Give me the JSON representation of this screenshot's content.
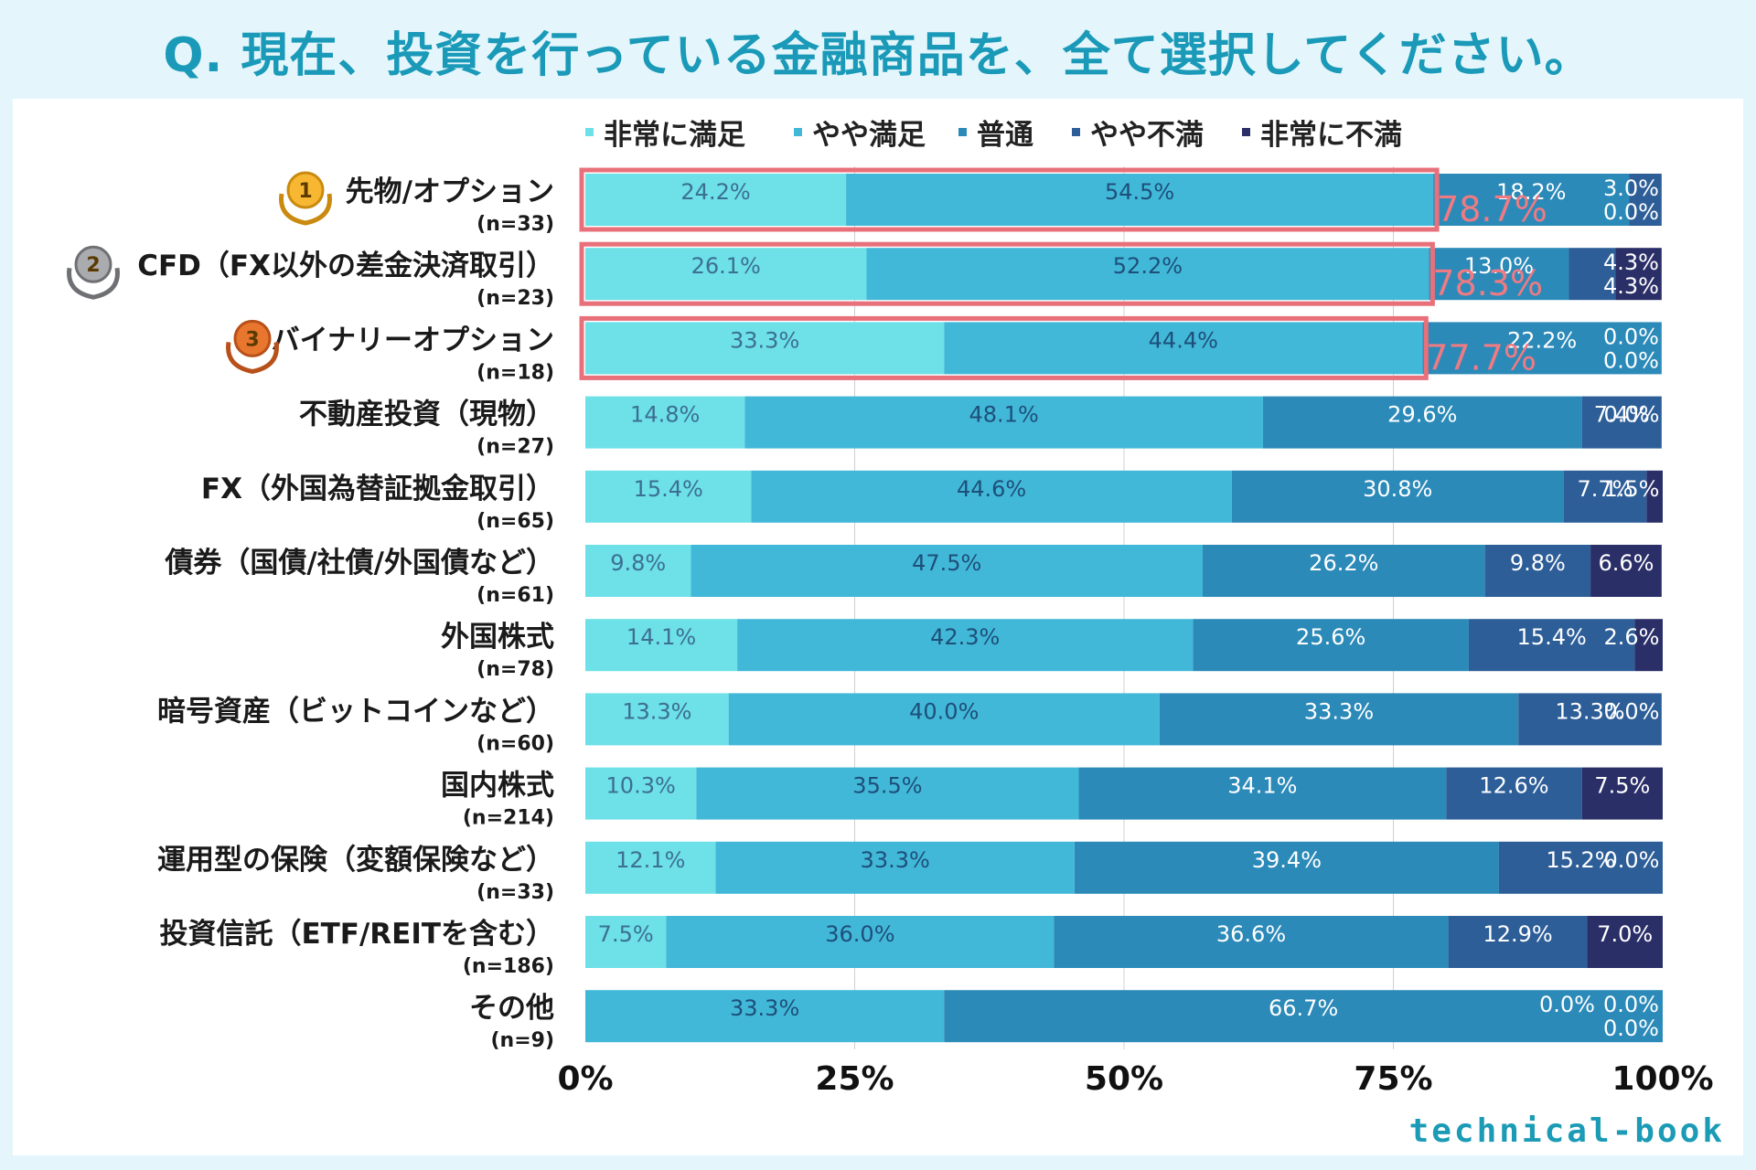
{
  "page": {
    "title": "Q. 現在、投資を行っている金融商品を、全て選択してください。",
    "logo": "technical-book"
  },
  "chart_data": {
    "type": "bar",
    "orientation": "horizontal",
    "stacked": true,
    "title": "Q. 現在、投資を行っている金融商品を、全て選択してください。",
    "xlim": [
      0,
      100
    ],
    "xticks": [
      "0%",
      "25%",
      "50%",
      "75%",
      "100%"
    ],
    "legend_position": "top",
    "series": [
      {
        "name": "非常に満足",
        "color": "#6de0e8"
      },
      {
        "name": "やや満足",
        "color": "#42b8d8"
      },
      {
        "name": "普通",
        "color": "#2c8ab9"
      },
      {
        "name": "やや不満",
        "color": "#2d5e98"
      },
      {
        "name": "非常に不満",
        "color": "#2b2f68"
      }
    ],
    "rows": [
      {
        "label": "先物/オプション",
        "n": "(n=33)",
        "rank": "1",
        "highlight": "78.7%",
        "values": [
          24.2,
          54.5,
          18.2,
          3.0,
          0.0
        ],
        "labels": [
          "24.2%",
          "54.5%",
          "18.2%",
          "3.0%",
          "0.0%"
        ]
      },
      {
        "label": "CFD（FX以外の差金決済取引）",
        "n": "(n=23)",
        "rank": "2",
        "highlight": "78.3%",
        "values": [
          26.1,
          52.2,
          13.0,
          4.3,
          4.3
        ],
        "labels": [
          "26.1%",
          "52.2%",
          "13.0%",
          "4.3%",
          "4.3%"
        ]
      },
      {
        "label": "バイナリーオプション",
        "n": "(n=18)",
        "rank": "3",
        "highlight": "77.7%",
        "values": [
          33.3,
          44.4,
          22.2,
          0.0,
          0.0
        ],
        "labels": [
          "33.3%",
          "44.4%",
          "22.2%",
          "0.0%",
          "0.0%"
        ]
      },
      {
        "label": "不動産投資（現物）",
        "n": "(n=27)",
        "values": [
          14.8,
          48.1,
          29.6,
          7.4,
          0.0
        ],
        "labels": [
          "14.8%",
          "48.1%",
          "29.6%",
          "7.4%",
          "0.0%"
        ]
      },
      {
        "label": "FX（外国為替証拠金取引）",
        "n": "(n=65)",
        "values": [
          15.4,
          44.6,
          30.8,
          7.7,
          1.5
        ],
        "labels": [
          "15.4%",
          "44.6%",
          "30.8%",
          "7.7%",
          "1.5%"
        ]
      },
      {
        "label": "債券（国債/社債/外国債など）",
        "n": "(n=61)",
        "values": [
          9.8,
          47.5,
          26.2,
          9.8,
          6.6
        ],
        "labels": [
          "9.8%",
          "47.5%",
          "26.2%",
          "9.8%",
          "6.6%"
        ]
      },
      {
        "label": "外国株式",
        "n": "(n=78)",
        "values": [
          14.1,
          42.3,
          25.6,
          15.4,
          2.6
        ],
        "labels": [
          "14.1%",
          "42.3%",
          "25.6%",
          "15.4%",
          "2.6%"
        ]
      },
      {
        "label": "暗号資産（ビットコインなど）",
        "n": "(n=60)",
        "values": [
          13.3,
          40.0,
          33.3,
          13.3,
          0.0
        ],
        "labels": [
          "13.3%",
          "40.0%",
          "33.3%",
          "13.3%",
          "0.0%"
        ]
      },
      {
        "label": "国内株式",
        "n": "(n=214)",
        "values": [
          10.3,
          35.5,
          34.1,
          12.6,
          7.5
        ],
        "labels": [
          "10.3%",
          "35.5%",
          "34.1%",
          "12.6%",
          "7.5%"
        ]
      },
      {
        "label": "運用型の保険（変額保険など）",
        "n": "(n=33)",
        "values": [
          12.1,
          33.3,
          39.4,
          15.2,
          0.0
        ],
        "labels": [
          "12.1%",
          "33.3%",
          "39.4%",
          "15.2%",
          "0.0%"
        ]
      },
      {
        "label": "投資信託（ETF/REITを含む）",
        "n": "(n=186)",
        "values": [
          7.5,
          36.0,
          36.6,
          12.9,
          7.0
        ],
        "labels": [
          "7.5%",
          "36.0%",
          "36.6%",
          "12.9%",
          "7.0%"
        ]
      },
      {
        "label": "その他",
        "n": "(n=9)",
        "values": [
          0.0,
          33.3,
          66.7,
          0.0,
          0.0
        ],
        "labels": [
          "0.0%",
          "33.3%",
          "66.7%",
          "0.0%",
          "0.0%"
        ]
      }
    ]
  }
}
